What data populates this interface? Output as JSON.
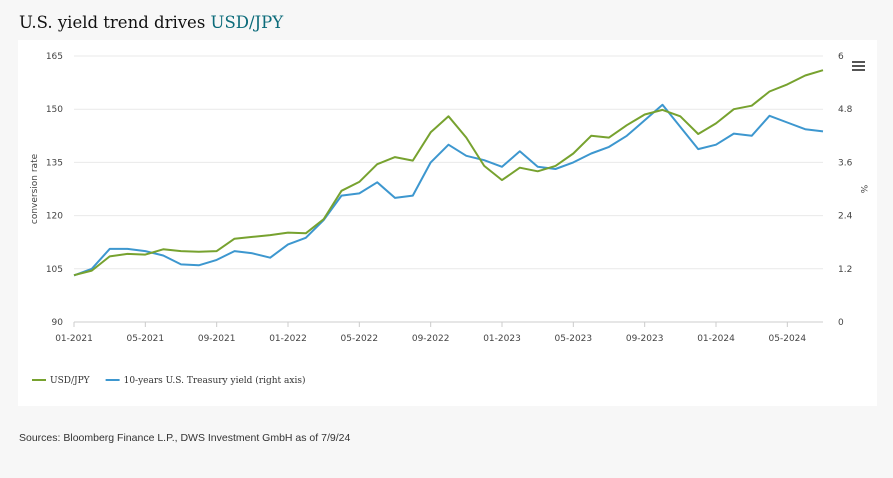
{
  "header": {
    "title_prefix": "U.S. yield trend drives",
    "title_accent": "USD/JPY"
  },
  "menu_icon": "hamburger-menu-icon",
  "source_note": "Sources: Bloomberg Finance L.P., DWS Investment GmbH as of 7/9/24",
  "colors": {
    "usdjpy": "#77a22f",
    "treasury": "#3d97cf",
    "accent": "#0b6b7a"
  },
  "chart_data": {
    "type": "line",
    "x_tick_labels": [
      "01-2021",
      "05-2021",
      "09-2021",
      "01-2022",
      "05-2022",
      "09-2022",
      "01-2023",
      "05-2023",
      "09-2023",
      "01-2024",
      "05-2024"
    ],
    "x_range": [
      "2021-01",
      "2024-07"
    ],
    "y_left": {
      "label": "conversion rate",
      "ticks": [
        90,
        105,
        120,
        135,
        150,
        165
      ],
      "range": [
        90,
        165
      ]
    },
    "y_right": {
      "label": "%",
      "ticks": [
        "0",
        "1.2",
        "2.4",
        "3.6",
        "4.8",
        "6"
      ],
      "range": [
        0,
        6
      ]
    },
    "grid": "horizontal",
    "legend_position": "bottom-left",
    "series": [
      {
        "name": "USD/JPY",
        "axis": "left",
        "points": [
          [
            "2021-01",
            103.2
          ],
          [
            "2021-02",
            104.5
          ],
          [
            "2021-03",
            108.5
          ],
          [
            "2021-04",
            109.2
          ],
          [
            "2021-05",
            109.0
          ],
          [
            "2021-06",
            110.5
          ],
          [
            "2021-07",
            110.0
          ],
          [
            "2021-08",
            109.8
          ],
          [
            "2021-09",
            110.0
          ],
          [
            "2021-10",
            113.5
          ],
          [
            "2021-11",
            114.0
          ],
          [
            "2021-12",
            114.5
          ],
          [
            "2022-01",
            115.2
          ],
          [
            "2022-02",
            115.0
          ],
          [
            "2022-03",
            119.0
          ],
          [
            "2022-04",
            127.0
          ],
          [
            "2022-05",
            129.5
          ],
          [
            "2022-06",
            134.5
          ],
          [
            "2022-07",
            136.5
          ],
          [
            "2022-08",
            135.5
          ],
          [
            "2022-09",
            143.5
          ],
          [
            "2022-10",
            148.0
          ],
          [
            "2022-11",
            142.0
          ],
          [
            "2022-12",
            134.0
          ],
          [
            "2023-01",
            130.0
          ],
          [
            "2023-02",
            133.5
          ],
          [
            "2023-03",
            132.5
          ],
          [
            "2023-04",
            134.0
          ],
          [
            "2023-05",
            137.5
          ],
          [
            "2023-06",
            142.5
          ],
          [
            "2023-07",
            142.0
          ],
          [
            "2023-08",
            145.5
          ],
          [
            "2023-09",
            148.5
          ],
          [
            "2023-10",
            149.8
          ],
          [
            "2023-11",
            148.0
          ],
          [
            "2023-12",
            143.0
          ],
          [
            "2024-01",
            146.0
          ],
          [
            "2024-02",
            150.0
          ],
          [
            "2024-03",
            151.0
          ],
          [
            "2024-04",
            155.0
          ],
          [
            "2024-05",
            157.0
          ],
          [
            "2024-06",
            159.5
          ],
          [
            "2024-07",
            161.0
          ]
        ]
      },
      {
        "name": "10-years U.S. Treasury yield (right axis)",
        "axis": "right",
        "points": [
          [
            "2021-01",
            1.05
          ],
          [
            "2021-02",
            1.2
          ],
          [
            "2021-03",
            1.65
          ],
          [
            "2021-04",
            1.65
          ],
          [
            "2021-05",
            1.6
          ],
          [
            "2021-06",
            1.5
          ],
          [
            "2021-07",
            1.3
          ],
          [
            "2021-08",
            1.28
          ],
          [
            "2021-09",
            1.4
          ],
          [
            "2021-10",
            1.6
          ],
          [
            "2021-11",
            1.55
          ],
          [
            "2021-12",
            1.45
          ],
          [
            "2022-01",
            1.75
          ],
          [
            "2022-02",
            1.9
          ],
          [
            "2022-03",
            2.3
          ],
          [
            "2022-04",
            2.85
          ],
          [
            "2022-05",
            2.9
          ],
          [
            "2022-06",
            3.15
          ],
          [
            "2022-07",
            2.8
          ],
          [
            "2022-08",
            2.85
          ],
          [
            "2022-09",
            3.6
          ],
          [
            "2022-10",
            4.0
          ],
          [
            "2022-11",
            3.75
          ],
          [
            "2022-12",
            3.65
          ],
          [
            "2023-01",
            3.5
          ],
          [
            "2023-02",
            3.85
          ],
          [
            "2023-03",
            3.5
          ],
          [
            "2023-04",
            3.45
          ],
          [
            "2023-05",
            3.6
          ],
          [
            "2023-06",
            3.8
          ],
          [
            "2023-07",
            3.95
          ],
          [
            "2023-08",
            4.2
          ],
          [
            "2023-09",
            4.55
          ],
          [
            "2023-10",
            4.9
          ],
          [
            "2023-11",
            4.4
          ],
          [
            "2023-12",
            3.9
          ],
          [
            "2024-01",
            4.0
          ],
          [
            "2024-02",
            4.25
          ],
          [
            "2024-03",
            4.2
          ],
          [
            "2024-04",
            4.65
          ],
          [
            "2024-05",
            4.5
          ],
          [
            "2024-06",
            4.35
          ],
          [
            "2024-07",
            4.3
          ]
        ]
      }
    ]
  }
}
